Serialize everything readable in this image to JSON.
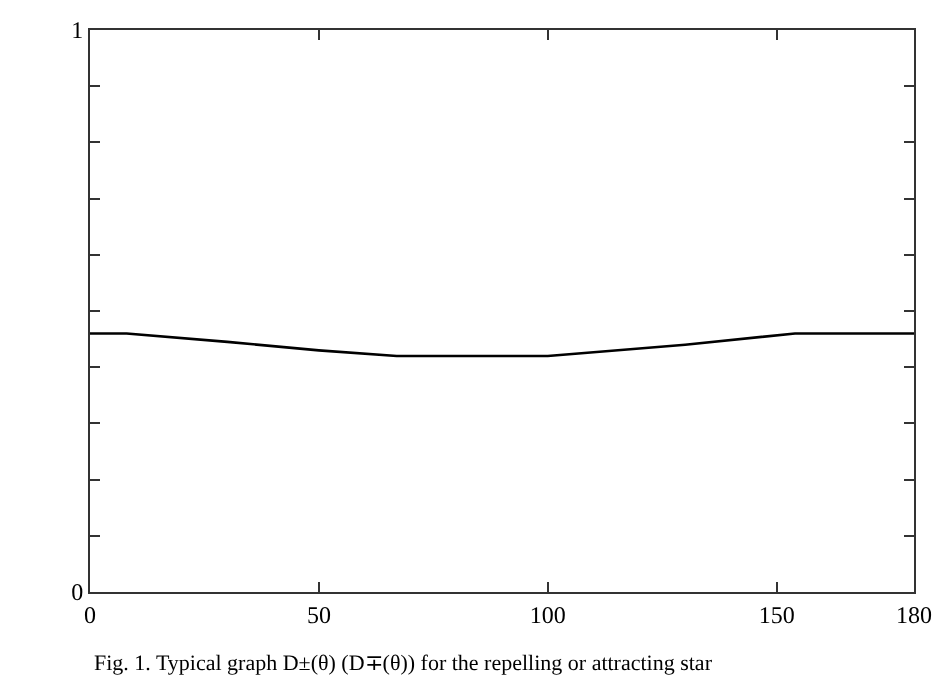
{
  "chart_data": {
    "type": "line",
    "x": [
      0,
      8,
      30,
      50,
      67,
      100,
      130,
      154,
      180
    ],
    "series": [
      {
        "color": "#000000",
        "values": [
          0.46,
          0.46,
          0.445,
          0.43,
          0.42,
          0.42,
          0.44,
          0.46,
          0.46
        ]
      }
    ],
    "xlim": [
      0,
      180
    ],
    "xticks": [
      0,
      50,
      100,
      150,
      180
    ],
    "ylim": [
      0,
      1
    ],
    "yticks": [
      0,
      {
        "value": 0.1,
        "label": null
      },
      {
        "value": 0.2,
        "label": null
      },
      {
        "value": 0.3,
        "label": null
      },
      {
        "value": 0.4,
        "label": null
      },
      {
        "value": 0.5,
        "label": null
      },
      {
        "value": 0.6,
        "label": null
      },
      {
        "value": 0.7,
        "label": null
      },
      {
        "value": 0.8,
        "label": null
      },
      {
        "value": 0.9,
        "label": null
      },
      1
    ],
    "marker": "none",
    "line_style": "solid",
    "annotations": [
      "Fig. 1. Typical graph D±(θ) (D∓(θ)) for the repelling or attracting star"
    ]
  }
}
